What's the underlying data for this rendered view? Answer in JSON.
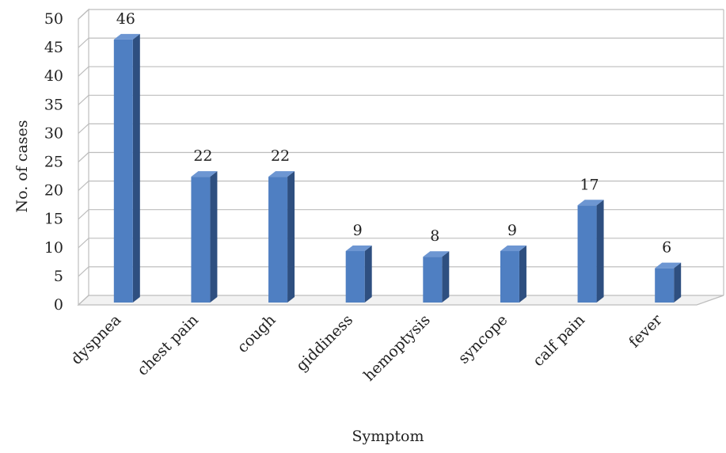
{
  "chart_data": {
    "type": "bar",
    "categories": [
      "dyspnea",
      "chest pain",
      "cough",
      "giddiness",
      "hemoptysis",
      "syncope",
      "calf pain",
      "fever"
    ],
    "series": [
      {
        "values": [
          46,
          22,
          22,
          9,
          8,
          9,
          17,
          6
        ]
      }
    ],
    "data_labels": [
      "46",
      "22",
      "22",
      "9",
      "8",
      "9",
      "17",
      "6"
    ],
    "xlabel": "Symptom",
    "ylabel": "No. of cases",
    "ylim": [
      0,
      50
    ],
    "yticks": [
      "0",
      "5",
      "10",
      "15",
      "20",
      "25",
      "30",
      "35",
      "40",
      "45",
      "50"
    ],
    "grid": true,
    "legend": "none",
    "style": "3d-clustered-column",
    "colors": {
      "bar_front": "#4f7fc2",
      "bar_side": "#2e4f80",
      "bar_top": "#6d96d2",
      "grid": "#bdbdbd",
      "wall": "#ffffff"
    }
  }
}
